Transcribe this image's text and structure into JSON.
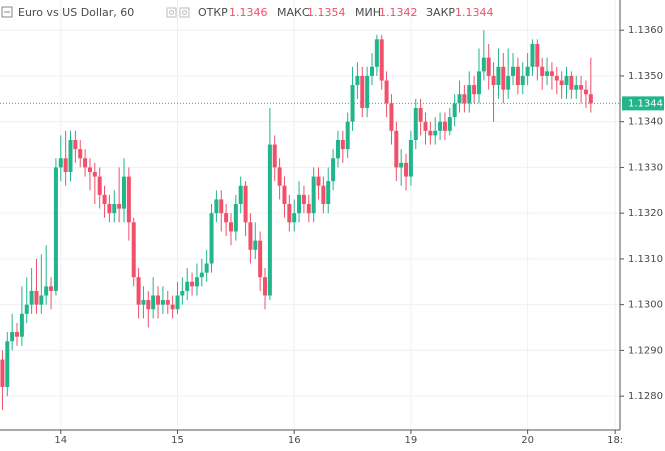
{
  "chart_data": {
    "type": "candlestick",
    "title": "Euro vs US Dollar, 60",
    "ohlc_labels": [
      "ОТКР",
      "МАКС",
      "МИН",
      "ЗАКР"
    ],
    "open": [
      1.1288,
      1.1282,
      1.1292,
      1.1294,
      1.1293,
      1.1298,
      1.13,
      1.1303,
      1.13,
      1.1302,
      1.1304,
      1.1303,
      1.133,
      1.1332,
      1.1329,
      1.1336,
      1.1334,
      1.1332,
      1.133,
      1.1329,
      1.1328,
      1.1324,
      1.1322,
      1.132,
      1.1322,
      1.1321,
      1.1328,
      1.1318,
      1.1306,
      1.13,
      1.1301,
      1.1299,
      1.1302,
      1.13,
      1.1301,
      1.13,
      1.1299,
      1.1302,
      1.1303,
      1.1305,
      1.1304,
      1.1306,
      1.1307,
      1.1309,
      1.132,
      1.1323,
      1.132,
      1.1318,
      1.1316,
      1.1322,
      1.1326,
      1.1318,
      1.1312,
      1.1314,
      1.1306,
      1.1302,
      1.1335,
      1.133,
      1.1326,
      1.1322,
      1.1318,
      1.132,
      1.1324,
      1.1322,
      1.132,
      1.1328,
      1.1326,
      1.1322,
      1.1327,
      1.1332,
      1.1336,
      1.1334,
      1.134,
      1.1348,
      1.135,
      1.1343,
      1.135,
      1.1352,
      1.1358,
      1.1349,
      1.1344,
      1.1338,
      1.133,
      1.1331,
      1.1328,
      1.1336,
      1.1343,
      1.134,
      1.1338,
      1.1337,
      1.1338,
      1.134,
      1.1338,
      1.1341,
      1.1344,
      1.1346,
      1.1344,
      1.1348,
      1.1346,
      1.1351,
      1.1354,
      1.135,
      1.1348,
      1.1352,
      1.1347,
      1.135,
      1.1352,
      1.1348,
      1.135,
      1.1352,
      1.1357,
      1.1352,
      1.135,
      1.1351,
      1.135,
      1.1349,
      1.1348,
      1.135,
      1.1347,
      1.1348,
      1.1347,
      1.1346
    ],
    "high": [
      1.129,
      1.1294,
      1.1298,
      1.1296,
      1.1304,
      1.1306,
      1.1308,
      1.131,
      1.1311,
      1.1313,
      1.1306,
      1.1332,
      1.1337,
      1.1338,
      1.1338,
      1.1338,
      1.1336,
      1.1334,
      1.1332,
      1.1331,
      1.133,
      1.1326,
      1.1324,
      1.1325,
      1.133,
      1.1332,
      1.133,
      1.1319,
      1.1308,
      1.1304,
      1.1303,
      1.1306,
      1.1304,
      1.1304,
      1.1303,
      1.1302,
      1.1305,
      1.1306,
      1.1308,
      1.1307,
      1.1309,
      1.131,
      1.1312,
      1.1322,
      1.1325,
      1.1325,
      1.1322,
      1.132,
      1.1324,
      1.1328,
      1.1327,
      1.132,
      1.1318,
      1.1316,
      1.1308,
      1.1343,
      1.1337,
      1.1332,
      1.1328,
      1.1324,
      1.1323,
      1.1327,
      1.1326,
      1.1324,
      1.133,
      1.133,
      1.1328,
      1.133,
      1.1334,
      1.1338,
      1.1338,
      1.1342,
      1.1352,
      1.1353,
      1.1352,
      1.1352,
      1.1355,
      1.1359,
      1.1359,
      1.1351,
      1.1346,
      1.134,
      1.1334,
      1.1333,
      1.1338,
      1.1345,
      1.1345,
      1.1342,
      1.134,
      1.1341,
      1.1342,
      1.1342,
      1.1343,
      1.1346,
      1.1349,
      1.1348,
      1.1351,
      1.135,
      1.1356,
      1.136,
      1.1357,
      1.1353,
      1.1356,
      1.1355,
      1.1356,
      1.1355,
      1.1354,
      1.1353,
      1.1355,
      1.1358,
      1.1358,
      1.1354,
      1.1354,
      1.1353,
      1.1352,
      1.1351,
      1.1352,
      1.1351,
      1.135,
      1.135,
      1.1349,
      1.1354
    ],
    "low": [
      1.1277,
      1.128,
      1.129,
      1.1291,
      1.1291,
      1.1296,
      1.1298,
      1.1298,
      1.1298,
      1.13,
      1.1299,
      1.1302,
      1.1327,
      1.1326,
      1.1327,
      1.1331,
      1.133,
      1.1328,
      1.1325,
      1.1322,
      1.1321,
      1.1319,
      1.1318,
      1.1318,
      1.1318,
      1.1318,
      1.1314,
      1.1304,
      1.1297,
      1.1297,
      1.1295,
      1.1297,
      1.1297,
      1.1298,
      1.1298,
      1.1297,
      1.1298,
      1.13,
      1.1301,
      1.1302,
      1.1302,
      1.1304,
      1.1305,
      1.1307,
      1.1318,
      1.1316,
      1.1315,
      1.1313,
      1.1314,
      1.132,
      1.1315,
      1.1309,
      1.131,
      1.1303,
      1.1299,
      1.1301,
      1.1327,
      1.1323,
      1.1319,
      1.1316,
      1.1316,
      1.1318,
      1.132,
      1.1318,
      1.1318,
      1.1323,
      1.132,
      1.132,
      1.1325,
      1.133,
      1.1331,
      1.1332,
      1.1338,
      1.1345,
      1.1341,
      1.1341,
      1.1348,
      1.135,
      1.1347,
      1.1341,
      1.1335,
      1.1327,
      1.1326,
      1.1325,
      1.1326,
      1.1334,
      1.1337,
      1.1335,
      1.1335,
      1.1335,
      1.1336,
      1.1336,
      1.1337,
      1.1339,
      1.1342,
      1.1342,
      1.1342,
      1.1344,
      1.1344,
      1.1349,
      1.1347,
      1.134,
      1.1345,
      1.1344,
      1.1345,
      1.1348,
      1.1346,
      1.1346,
      1.1348,
      1.135,
      1.1349,
      1.1347,
      1.1348,
      1.1347,
      1.1346,
      1.1345,
      1.1345,
      1.1345,
      1.1345,
      1.1344,
      1.1343,
      1.1342
    ],
    "close": [
      1.1282,
      1.1292,
      1.1294,
      1.1293,
      1.1298,
      1.13,
      1.1303,
      1.13,
      1.1302,
      1.1304,
      1.1303,
      1.133,
      1.1332,
      1.1329,
      1.1336,
      1.1334,
      1.1332,
      1.133,
      1.1329,
      1.1328,
      1.1324,
      1.1322,
      1.132,
      1.1322,
      1.1321,
      1.1328,
      1.1318,
      1.1306,
      1.13,
      1.1301,
      1.1299,
      1.1302,
      1.13,
      1.1301,
      1.13,
      1.1299,
      1.1302,
      1.1303,
      1.1305,
      1.1304,
      1.1306,
      1.1307,
      1.1309,
      1.132,
      1.1323,
      1.132,
      1.1318,
      1.1316,
      1.1322,
      1.1326,
      1.1318,
      1.1312,
      1.1314,
      1.1306,
      1.1302,
      1.1335,
      1.133,
      1.1326,
      1.1322,
      1.1318,
      1.132,
      1.1324,
      1.1322,
      1.132,
      1.1328,
      1.1326,
      1.1322,
      1.1327,
      1.1332,
      1.1336,
      1.1334,
      1.134,
      1.1348,
      1.135,
      1.1343,
      1.135,
      1.1352,
      1.1358,
      1.1349,
      1.1344,
      1.1338,
      1.133,
      1.1331,
      1.1328,
      1.1336,
      1.1343,
      1.134,
      1.1338,
      1.1337,
      1.1338,
      1.134,
      1.1338,
      1.1341,
      1.1344,
      1.1346,
      1.1344,
      1.1348,
      1.1346,
      1.1351,
      1.1354,
      1.135,
      1.1348,
      1.1352,
      1.1347,
      1.135,
      1.1352,
      1.1348,
      1.135,
      1.1352,
      1.1357,
      1.1352,
      1.135,
      1.1351,
      1.135,
      1.1349,
      1.1348,
      1.135,
      1.1347,
      1.1348,
      1.1347,
      1.1346,
      1.1344
    ],
    "up_color": "#20b58a",
    "down_color": "#f0506a",
    "last_price_color": "#20b58a",
    "ylim": [
      1.12726,
      1.13666
    ],
    "yticks": [
      {
        "value": 1.128,
        "label": "1.1280"
      },
      {
        "value": 1.129,
        "label": "1.1290"
      },
      {
        "value": 1.13,
        "label": "1.1300"
      },
      {
        "value": 1.131,
        "label": "1.1310"
      },
      {
        "value": 1.132,
        "label": "1.1320"
      },
      {
        "value": 1.133,
        "label": "1.1330"
      },
      {
        "value": 1.134,
        "label": "1.1340"
      },
      {
        "value": 1.135,
        "label": "1.1350"
      },
      {
        "value": 1.136,
        "label": "1.1360"
      }
    ],
    "xlim": [
      -0.5,
      127
    ],
    "xticks": [
      {
        "value": 12,
        "label": "14"
      },
      {
        "value": 36,
        "label": "15"
      },
      {
        "value": 60,
        "label": "16"
      },
      {
        "value": 84,
        "label": "19"
      },
      {
        "value": 108,
        "label": "20"
      },
      {
        "value": 126,
        "label": "18:"
      }
    ],
    "grid": true
  }
}
